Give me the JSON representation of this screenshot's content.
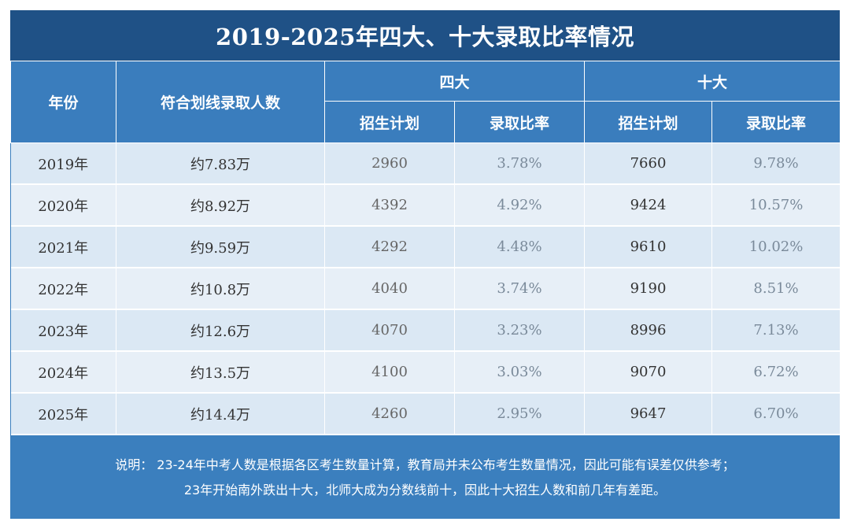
{
  "title": "2019-2025年四大、十大录取比率情况",
  "headers": {
    "year": "年份",
    "qualified": "符合划线录取人数",
    "group_4": "四大",
    "group_10": "十大",
    "plan_4": "招生计划",
    "rate_4": "录取比率",
    "plan_10": "招生计划",
    "rate_10": "录取比率"
  },
  "rows": [
    {
      "year": "2019年",
      "qualified": "约7.83万",
      "plan4": "2960",
      "rate4": "3.78%",
      "plan10": "7660",
      "rate10": "9.78%"
    },
    {
      "year": "2020年",
      "qualified": "约8.92万",
      "plan4": "4392",
      "rate4": "4.92%",
      "plan10": "9424",
      "rate10": "10.57%"
    },
    {
      "year": "2021年",
      "qualified": "约9.59万",
      "plan4": "4292",
      "rate4": "4.48%",
      "plan10": "9610",
      "rate10": "10.02%"
    },
    {
      "year": "2022年",
      "qualified": "约10.8万",
      "plan4": "4040",
      "rate4": "3.74%",
      "plan10": "9190",
      "rate10": "8.51%"
    },
    {
      "year": "2023年",
      "qualified": "约12.6万",
      "plan4": "4070",
      "rate4": "3.23%",
      "plan10": "8996",
      "rate10": "7.13%"
    },
    {
      "year": "2024年",
      "qualified": "约13.5万",
      "plan4": "4100",
      "rate4": "3.03%",
      "plan10": "9070",
      "rate10": "6.72%"
    },
    {
      "year": "2025年",
      "qualified": "约14.4万",
      "plan4": "4260",
      "rate4": "2.95%",
      "plan10": "9647",
      "rate10": "6.70%"
    }
  ],
  "note": {
    "line1": "说明： 23-24年中考人数是根据各区考生数量计算，教育局并未公布考生数量情况，因此可能有误差仅供参考；",
    "line2": "23年开始南外跌出十大，北师大成为分数线前十，因此十大招生人数和前几年有差距。"
  }
}
